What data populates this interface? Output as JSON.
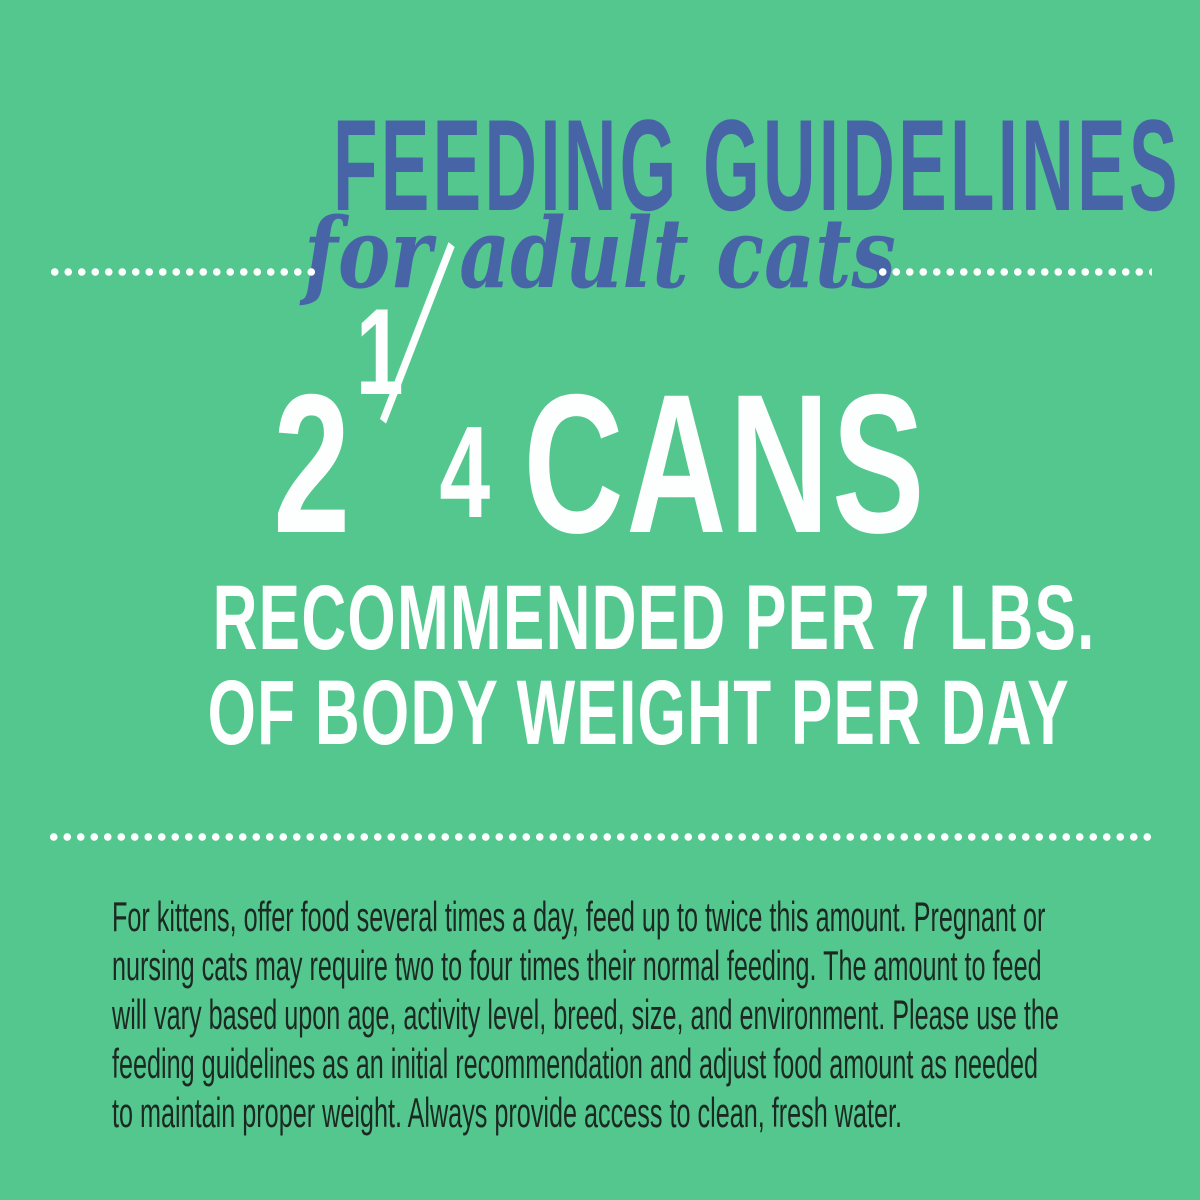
{
  "canvas": {
    "background_color": "#53C78E",
    "accent_blue": "#4765A6",
    "headline_white": "#FCFFFD",
    "footnote_dark": "#1C2922"
  },
  "header": {
    "title": "FEEDING GUIDELINES",
    "subtitle": "for adult cats"
  },
  "dosage": {
    "amount_whole": "2",
    "fraction_numerator": "1",
    "fraction_denominator": "4",
    "unit": "CANS",
    "detail_line_1": "RECOMMENDED PER 7 LBS.",
    "detail_line_2": "OF BODY WEIGHT PER DAY"
  },
  "footnote": {
    "lines": [
      "For kittens, offer food several times a day, feed up to twice this amount. Pregnant or",
      "nursing cats may require two to four times their normal feeding. The amount to feed",
      "will vary based upon age, activity level, breed, size, and environment. Please use the",
      "feeding guidelines as an initial recommendation and adjust food amount as needed",
      "to maintain proper weight. Always provide access to clean, fresh water."
    ]
  }
}
